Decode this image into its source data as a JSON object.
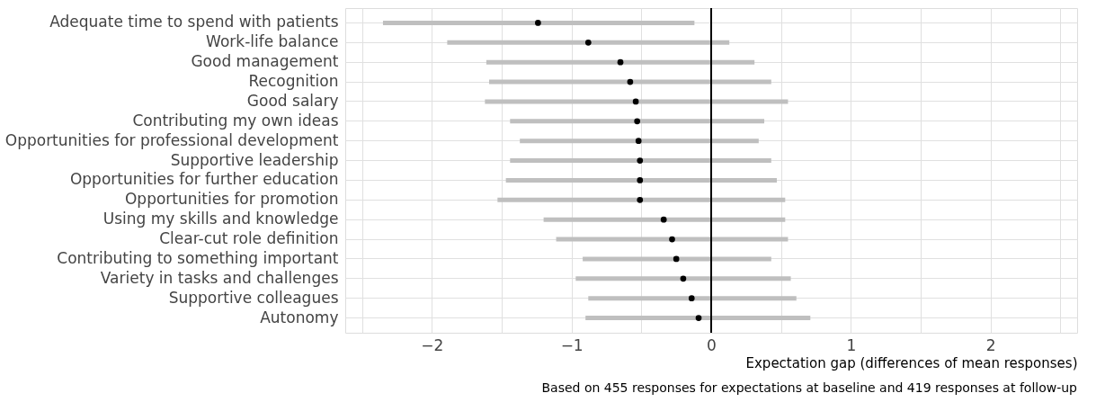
{
  "chart_data": {
    "type": "scatter",
    "orientation": "horizontal",
    "marker": "circle",
    "grid": true,
    "xlabel": "Expectation gap (differences of mean responses)",
    "annotations": [
      "Based on 455  responses for expectations at baseline and  419  responses at follow-up"
    ],
    "categories": [
      "Adequate time to spend with patients",
      "Work-life balance",
      "Good management",
      "Recognition",
      "Good salary",
      "Contributing my own ideas",
      "Opportunities for professional development",
      "Supportive leadership",
      "Opportunities for further education",
      "Opportunities for promotion",
      "Using my skills and knowledge",
      "Clear-cut role definition",
      "Contributing to something important",
      "Variety in tasks and challenges",
      "Supportive colleagues",
      "Autonomy"
    ],
    "series": [
      {
        "color": "#000000",
        "values": [
          -1.24,
          -0.88,
          -0.65,
          -0.58,
          -0.54,
          -0.53,
          -0.52,
          -0.51,
          -0.51,
          -0.51,
          -0.34,
          -0.28,
          -0.25,
          -0.2,
          -0.14,
          -0.09
        ],
        "errors": [
          [
            -2.35,
            -0.12
          ],
          [
            -1.89,
            0.13
          ],
          [
            -1.61,
            0.31
          ],
          [
            -1.59,
            0.43
          ],
          [
            -1.62,
            0.55
          ],
          [
            -1.44,
            0.38
          ],
          [
            -1.37,
            0.34
          ],
          [
            -1.44,
            0.43
          ],
          [
            -1.47,
            0.47
          ],
          [
            -1.53,
            0.53
          ],
          [
            -1.2,
            0.53
          ],
          [
            -1.11,
            0.55
          ],
          [
            -0.92,
            0.43
          ],
          [
            -0.97,
            0.57
          ],
          [
            -0.88,
            0.61
          ],
          [
            -0.9,
            0.71
          ]
        ]
      }
    ],
    "xlim": [
      -2.62,
      2.62
    ],
    "xticks": [
      {
        "value": -2.5,
        "label": null
      },
      -2,
      {
        "value": -1.5,
        "label": null
      },
      -1,
      {
        "value": -0.5,
        "label": null
      },
      0,
      {
        "value": 0.5,
        "label": null
      },
      1,
      {
        "value": 1.5,
        "label": null
      },
      2,
      {
        "value": 2.5,
        "label": null
      }
    ],
    "ref_lines": [
      {
        "axis": "x",
        "value": 0,
        "color": "#000000"
      }
    ]
  }
}
